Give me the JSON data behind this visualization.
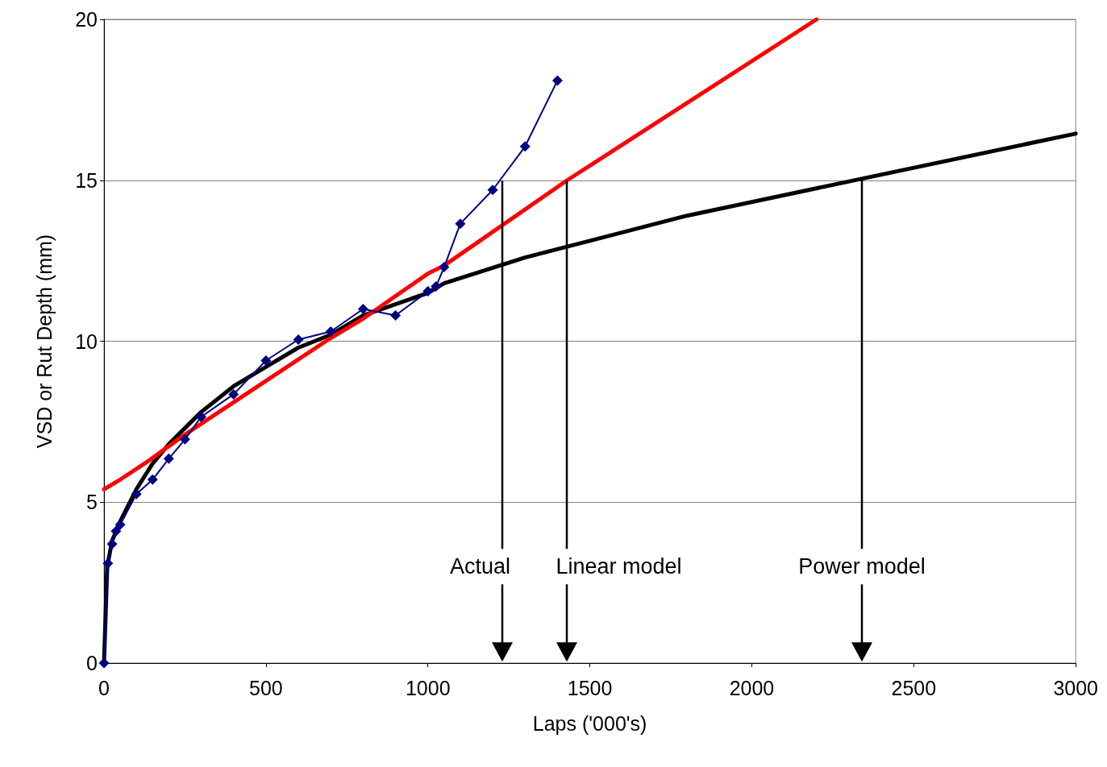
{
  "chart_data": {
    "type": "line",
    "xlabel": "Laps ('000's)",
    "ylabel": "VSD or Rut Depth (mm)",
    "xlim": [
      0,
      3000
    ],
    "xticks": [
      0,
      500,
      1000,
      1500,
      2000,
      2500,
      3000
    ],
    "ylim": [
      0,
      20
    ],
    "yticks": [
      0,
      5,
      10,
      15,
      20
    ],
    "grid": "y",
    "line_style": "solid",
    "series": [
      {
        "color": "#000000",
        "marker": "none",
        "x": [
          0,
          10,
          25,
          50,
          100,
          150,
          200,
          300,
          400,
          500,
          600,
          700,
          800,
          1000,
          1050,
          1300,
          1800,
          3000
        ],
        "values": [
          0,
          3.0,
          3.8,
          4.4,
          5.4,
          6.2,
          6.8,
          7.8,
          8.6,
          9.2,
          9.8,
          10.2,
          10.8,
          11.5,
          11.8,
          12.6,
          13.9,
          16.45
        ]
      },
      {
        "color": "#ff0000",
        "marker": "none",
        "x": [
          0,
          50,
          140,
          250,
          400,
          700,
          800,
          1000,
          1050,
          1430,
          2200
        ],
        "values": [
          5.4,
          5.7,
          6.3,
          7.1,
          8.1,
          10.1,
          10.7,
          12.1,
          12.35,
          15.0,
          20.0
        ]
      },
      {
        "color": "#000080",
        "marker": "diamond",
        "x": [
          0,
          12,
          25,
          37,
          50,
          100,
          150,
          200,
          250,
          300,
          400,
          500,
          600,
          700,
          800,
          900,
          1000,
          1025,
          1050,
          1100,
          1200,
          1300,
          1400
        ],
        "values": [
          0,
          3.1,
          3.7,
          4.1,
          4.3,
          5.25,
          5.7,
          6.35,
          6.95,
          7.65,
          8.35,
          9.4,
          10.05,
          10.3,
          11.0,
          10.8,
          11.55,
          11.7,
          12.3,
          13.65,
          14.7,
          16.05,
          18.1
        ]
      }
    ],
    "annotations": [
      {
        "text": "Actual",
        "x": 1230,
        "y": 15
      },
      {
        "text": "Linear model",
        "x": 1430,
        "y": 15
      },
      {
        "text": "Power model",
        "x": 2340,
        "y": 15
      }
    ]
  }
}
